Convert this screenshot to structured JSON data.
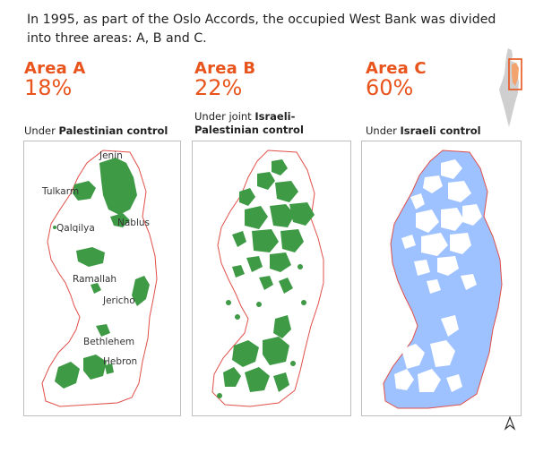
{
  "intro": "In 1995, as part of the Oslo Accords, the occupied West Bank was divided into three areas: A, B and C.",
  "colors": {
    "accent": "#e8541c",
    "area_fill_green": "#3f9a46",
    "area_fill_blue": "#9ec1ff",
    "border_red": "#e0504a",
    "panel_border": "#bdbdbd"
  },
  "areas": [
    {
      "title": "Area A",
      "percent": "18%",
      "control_prefix": "Under ",
      "control_bold": "Palestinian control"
    },
    {
      "title": "Area B",
      "percent": "22%",
      "control_prefix": "Under joint ",
      "control_bold": "Israeli-Palestinian control"
    },
    {
      "title": "Area C",
      "percent": "60%",
      "control_prefix": "Under ",
      "control_bold": "Israeli control"
    }
  ],
  "cities": {
    "jenin": "Jenin",
    "tulkarm": "Tulkarm",
    "nablus": "Nablus",
    "qalqilya": "Qalqilya",
    "ramallah": "Ramallah",
    "jericho": "Jericho",
    "bethlehem": "Bethlehem",
    "hebron": "Hebron"
  },
  "icons": {
    "inset": "locator-map-icon",
    "compass": "north-arrow-icon"
  }
}
